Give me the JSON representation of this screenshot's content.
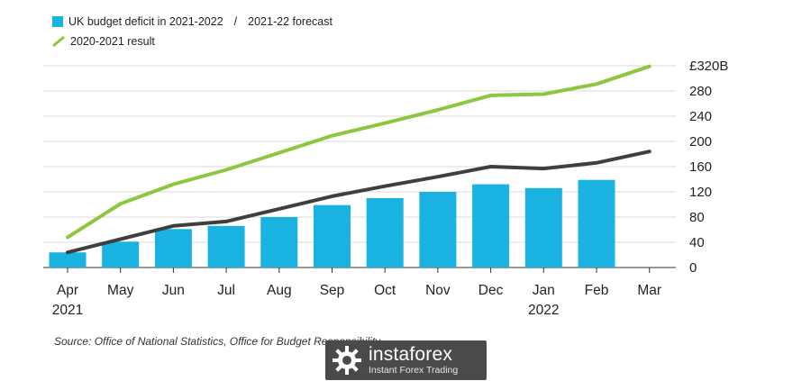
{
  "chart_data": {
    "type": "bar",
    "categories": [
      "Apr",
      "May",
      "Jun",
      "Jul",
      "Aug",
      "Sep",
      "Oct",
      "Nov",
      "Dec",
      "Jan",
      "Feb",
      "Mar"
    ],
    "category_sublabels": [
      "2021",
      "",
      "",
      "",
      "",
      "",
      "",
      "",
      "",
      "2022",
      "",
      ""
    ],
    "series": [
      {
        "name": "UK budget deficit in 2021-2022",
        "kind": "bar",
        "color": "#1ab2e0",
        "values": [
          24,
          41,
          61,
          66,
          80,
          99,
          110,
          120,
          132,
          126,
          139,
          null
        ]
      },
      {
        "name": "2021-22 forecast",
        "kind": "line",
        "color": "#3f3f3f",
        "values": [
          24,
          45,
          66,
          73,
          93,
          113,
          129,
          144,
          160,
          157,
          166,
          184
        ]
      },
      {
        "name": "2020-2021 result",
        "kind": "line",
        "color": "#8dc63f",
        "values": [
          48,
          101,
          132,
          155,
          182,
          209,
          229,
          250,
          273,
          275,
          291,
          319
        ]
      }
    ],
    "y_ticks": [
      0,
      40,
      80,
      120,
      160,
      200,
      240,
      280,
      320
    ],
    "y_tick_labels": [
      "0",
      "40",
      "80",
      "120",
      "160",
      "200",
      "240",
      "280",
      "£320B"
    ],
    "ylim": [
      0,
      320
    ],
    "grid": true,
    "title": "",
    "xlabel": "",
    "ylabel": ""
  },
  "legend": {
    "bar_label": "UK budget deficit in 2021-2022",
    "separator": "/",
    "forecast_label": "2021-22 forecast",
    "result_label": "2020-2021 result"
  },
  "source": "Source: Office of National Statistics, Office for Budget Responsibility",
  "watermark": {
    "brand": "instaforex",
    "tagline": "Instant Forex Trading"
  }
}
